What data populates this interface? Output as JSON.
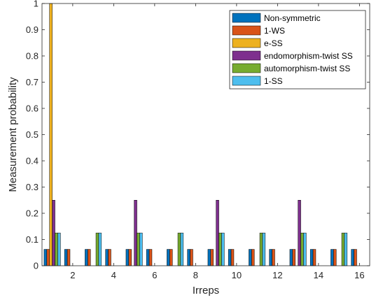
{
  "chart_data": {
    "type": "bar",
    "xlabel": "Irreps",
    "ylabel": "Measurement probability",
    "xlim": [
      0.5,
      16.5
    ],
    "ylim": [
      0,
      1
    ],
    "x_ticks": [
      2,
      4,
      6,
      8,
      10,
      12,
      14,
      16
    ],
    "y_ticks": [
      0,
      0.1,
      0.2,
      0.3,
      0.4,
      0.5,
      0.6,
      0.7,
      0.8,
      0.9,
      1
    ],
    "categories": [
      1,
      2,
      3,
      4,
      5,
      6,
      7,
      8,
      9,
      10,
      11,
      12,
      13,
      14,
      15,
      16
    ],
    "legend_position": "top-right",
    "grid": false,
    "series": [
      {
        "name": "Non-symmetric",
        "color": "#0072BD",
        "values": [
          0.0625,
          0.0625,
          0.0625,
          0.0625,
          0.0625,
          0.0625,
          0.0625,
          0.0625,
          0.0625,
          0.0625,
          0.0625,
          0.0625,
          0.0625,
          0.0625,
          0.0625,
          0.0625
        ]
      },
      {
        "name": "1-WS",
        "color": "#D95319",
        "values": [
          0.0625,
          0.0625,
          0.0625,
          0.0625,
          0.0625,
          0.0625,
          0.0625,
          0.0625,
          0.0625,
          0.0625,
          0.0625,
          0.0625,
          0.0625,
          0.0625,
          0.0625,
          0.0625
        ]
      },
      {
        "name": "e-SS",
        "color": "#EDB120",
        "values": [
          1,
          0,
          0,
          0,
          0,
          0,
          0,
          0,
          0,
          0,
          0,
          0,
          0,
          0,
          0,
          0
        ]
      },
      {
        "name": "endomorphism-twist SS",
        "color": "#7E2F8E",
        "values": [
          0.25,
          0,
          0,
          0,
          0.25,
          0,
          0,
          0,
          0.25,
          0,
          0,
          0,
          0.25,
          0,
          0,
          0
        ]
      },
      {
        "name": "automorphism-twist SS",
        "color": "#77AC30",
        "values": [
          0.125,
          0,
          0.125,
          0,
          0.125,
          0,
          0.125,
          0,
          0.125,
          0,
          0.125,
          0,
          0.125,
          0,
          0.125,
          0
        ]
      },
      {
        "name": "1-SS",
        "color": "#4DBEEE",
        "values": [
          0.125,
          0,
          0.125,
          0,
          0.125,
          0,
          0.125,
          0,
          0.125,
          0,
          0.125,
          0,
          0.125,
          0,
          0.125,
          0
        ]
      }
    ]
  }
}
